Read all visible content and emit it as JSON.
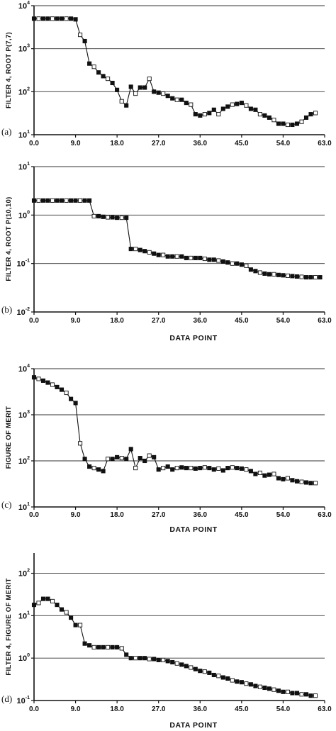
{
  "chart_data": [
    {
      "type": "line",
      "panel_label": "(a)",
      "ylabel": "FILTER 4, ROOT P(7,7)",
      "xlabel": "",
      "yscale": "log",
      "ylim": [
        10,
        10000
      ],
      "xlim": [
        0,
        63
      ],
      "xticks": [
        "0.0",
        "9.0",
        "18.0",
        "27.0",
        "36.0",
        "45.0",
        "54.0",
        "63.0"
      ],
      "yticks": [
        {
          "base": "10",
          "exp": "1"
        },
        {
          "base": "10",
          "exp": "2"
        },
        {
          "base": "10",
          "exp": "3"
        },
        {
          "base": "10",
          "exp": "4"
        }
      ],
      "gridlines": [
        100,
        1000,
        10000
      ],
      "series": [
        {
          "x": [
            0,
            1,
            2,
            3,
            4,
            5,
            6,
            7,
            8,
            9,
            10,
            11,
            12,
            13,
            14,
            15,
            16,
            17,
            18,
            19,
            20,
            21,
            22,
            23,
            24,
            25,
            26,
            27,
            28,
            29,
            30,
            31,
            32,
            33,
            34,
            35,
            36,
            37,
            38,
            39,
            40,
            41,
            42,
            43,
            44,
            45,
            46,
            47,
            48,
            49,
            50,
            51,
            52,
            53,
            54,
            55,
            56,
            57,
            58,
            59,
            60,
            61
          ],
          "y": [
            5000,
            5000,
            5000,
            5000,
            5000,
            5000,
            5000,
            5000,
            5000,
            4800,
            2100,
            1500,
            450,
            380,
            280,
            230,
            200,
            160,
            110,
            60,
            48,
            130,
            90,
            125,
            125,
            200,
            100,
            95,
            90,
            80,
            70,
            65,
            65,
            55,
            50,
            30,
            28,
            30,
            32,
            38,
            30,
            40,
            45,
            50,
            52,
            55,
            48,
            40,
            38,
            30,
            28,
            25,
            22,
            18,
            18,
            17,
            17,
            18,
            20,
            25,
            30,
            32
          ]
        }
      ]
    },
    {
      "type": "line",
      "panel_label": "(b)",
      "ylabel": "FILTER 4, ROOT P(10,10)",
      "xlabel": "DATA POINT",
      "yscale": "log",
      "ylim": [
        0.01,
        10
      ],
      "xlim": [
        0,
        63
      ],
      "xticks": [
        "0.0",
        "9.0",
        "18.0",
        "27.0",
        "36.0",
        "45.0",
        "54.0",
        "63.0"
      ],
      "yticks": [
        {
          "base": "10",
          "exp": "-2"
        },
        {
          "base": "10",
          "exp": "-1"
        },
        {
          "base": "10",
          "exp": "0"
        },
        {
          "base": "10",
          "exp": "1"
        }
      ],
      "gridlines": [
        0.1,
        1,
        10
      ],
      "series": [
        {
          "x": [
            0,
            1,
            2,
            3,
            4,
            5,
            6,
            7,
            8,
            9,
            10,
            11,
            12,
            13,
            14,
            15,
            16,
            17,
            18,
            19,
            20,
            21,
            22,
            23,
            24,
            25,
            26,
            27,
            28,
            29,
            30,
            31,
            32,
            33,
            34,
            35,
            36,
            37,
            38,
            39,
            40,
            41,
            42,
            43,
            44,
            45,
            46,
            47,
            48,
            49,
            50,
            51,
            52,
            53,
            54,
            55,
            56,
            57,
            58,
            59,
            60,
            61,
            62
          ],
          "y": [
            2.0,
            2.0,
            2.0,
            2.0,
            2.0,
            2.0,
            2.0,
            2.0,
            2.0,
            2.0,
            2.0,
            2.0,
            2.0,
            0.95,
            0.95,
            0.92,
            0.9,
            0.9,
            0.88,
            0.88,
            0.88,
            0.2,
            0.2,
            0.19,
            0.18,
            0.17,
            0.16,
            0.15,
            0.15,
            0.14,
            0.14,
            0.14,
            0.14,
            0.13,
            0.13,
            0.13,
            0.13,
            0.125,
            0.12,
            0.12,
            0.115,
            0.11,
            0.105,
            0.1,
            0.1,
            0.095,
            0.09,
            0.075,
            0.07,
            0.065,
            0.062,
            0.06,
            0.06,
            0.058,
            0.057,
            0.056,
            0.055,
            0.054,
            0.053,
            0.052,
            0.052,
            0.052,
            0.052
          ]
        }
      ]
    },
    {
      "type": "line",
      "panel_label": "(c)",
      "ylabel": "FIGURE OF MERIT",
      "xlabel": "DATA POINT",
      "yscale": "log",
      "ylim": [
        10,
        10000
      ],
      "xlim": [
        0,
        63
      ],
      "xticks": [
        "0.0",
        "9.0",
        "18.0",
        "27.0",
        "36.0",
        "45.0",
        "54.0",
        "63.0"
      ],
      "yticks": [
        {
          "base": "10",
          "exp": "1"
        },
        {
          "base": "10",
          "exp": "2"
        },
        {
          "base": "10",
          "exp": "3"
        },
        {
          "base": "10",
          "exp": "4"
        }
      ],
      "gridlines": [
        100,
        1000,
        10000
      ],
      "series": [
        {
          "x": [
            0,
            1,
            2,
            3,
            4,
            5,
            6,
            7,
            8,
            9,
            10,
            11,
            12,
            13,
            14,
            15,
            16,
            17,
            18,
            19,
            20,
            21,
            22,
            23,
            24,
            25,
            26,
            27,
            28,
            29,
            30,
            31,
            32,
            33,
            34,
            35,
            36,
            37,
            38,
            39,
            40,
            41,
            42,
            43,
            44,
            45,
            46,
            47,
            48,
            49,
            50,
            51,
            52,
            53,
            54,
            55,
            56,
            57,
            58,
            59,
            60,
            61
          ],
          "y": [
            6500,
            6000,
            5500,
            5000,
            4500,
            4000,
            3500,
            3000,
            2200,
            1800,
            240,
            110,
            75,
            70,
            65,
            60,
            110,
            110,
            120,
            115,
            110,
            180,
            70,
            115,
            100,
            130,
            120,
            65,
            70,
            75,
            65,
            70,
            72,
            70,
            70,
            68,
            70,
            72,
            70,
            65,
            68,
            62,
            70,
            72,
            70,
            68,
            65,
            60,
            52,
            55,
            48,
            50,
            52,
            42,
            40,
            42,
            38,
            36,
            35,
            34,
            33,
            33
          ]
        }
      ]
    },
    {
      "type": "line",
      "panel_label": "(d)",
      "ylabel": "FILTER 4, FIGURE OF MERIT",
      "xlabel": "DATA POINT",
      "yscale": "log",
      "ylim": [
        0.1,
        300
      ],
      "xlim": [
        0,
        63
      ],
      "xticks": [
        "0.0",
        "9.0",
        "18.0",
        "27.0",
        "36.0",
        "45.0",
        "54.0",
        "63.0"
      ],
      "yticks": [
        {
          "base": "10",
          "exp": "-1"
        },
        {
          "base": "10",
          "exp": "0"
        },
        {
          "base": "10",
          "exp": "1"
        },
        {
          "base": "10",
          "exp": "2"
        }
      ],
      "gridlines": [
        1,
        10,
        100
      ],
      "series": [
        {
          "x": [
            0,
            1,
            2,
            3,
            4,
            5,
            6,
            7,
            8,
            9,
            10,
            11,
            12,
            13,
            14,
            15,
            16,
            17,
            18,
            19,
            20,
            21,
            22,
            23,
            24,
            25,
            26,
            27,
            28,
            29,
            30,
            31,
            32,
            33,
            34,
            35,
            36,
            37,
            38,
            39,
            40,
            41,
            42,
            43,
            44,
            45,
            46,
            47,
            48,
            49,
            50,
            51,
            52,
            53,
            54,
            55,
            56,
            57,
            58,
            59,
            60,
            61
          ],
          "y": [
            18,
            20,
            25,
            25,
            22,
            18,
            14,
            12,
            9,
            6,
            6,
            2.2,
            2.0,
            1.8,
            1.8,
            1.8,
            1.8,
            1.8,
            1.8,
            1.7,
            1.2,
            1.0,
            1.0,
            1.0,
            1.0,
            0.95,
            0.95,
            0.9,
            0.9,
            0.85,
            0.8,
            0.75,
            0.7,
            0.65,
            0.6,
            0.55,
            0.5,
            0.48,
            0.45,
            0.4,
            0.38,
            0.35,
            0.33,
            0.3,
            0.28,
            0.27,
            0.25,
            0.24,
            0.22,
            0.21,
            0.2,
            0.19,
            0.18,
            0.17,
            0.16,
            0.16,
            0.15,
            0.15,
            0.14,
            0.14,
            0.13,
            0.13
          ]
        }
      ]
    }
  ]
}
